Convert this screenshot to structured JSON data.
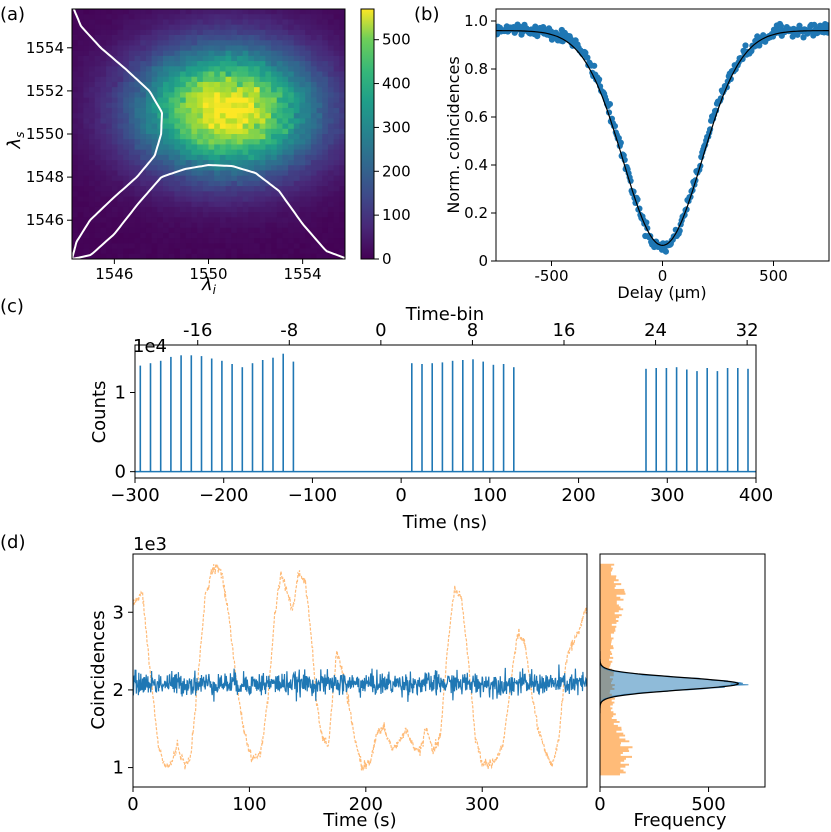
{
  "chart_data": [
    {
      "panel_label": "(a)",
      "type": "heatmap",
      "xlabel": "λ_i",
      "ylabel": "λ_s",
      "xlim": [
        1544.2,
        1555.8
      ],
      "ylim": [
        1544.2,
        1555.8
      ],
      "xticks": [
        1546,
        1550,
        1554
      ],
      "yticks": [
        1546,
        1548,
        1550,
        1552,
        1554
      ],
      "colormap": "viridis",
      "colorbar": {
        "min": 0,
        "max": 570,
        "ticks": [
          0,
          100,
          200,
          300,
          400,
          500
        ]
      },
      "peak": {
        "x": 1550.8,
        "y": 1551.1,
        "value": 570
      },
      "marginal_signal": {
        "y": [
          1544.2,
          1545,
          1546,
          1547,
          1548,
          1549,
          1550,
          1551,
          1552,
          1553,
          1554,
          1555,
          1555.8
        ],
        "rel": [
          0.0,
          0.05,
          0.2,
          0.45,
          0.72,
          0.92,
          0.99,
          1.0,
          0.86,
          0.6,
          0.32,
          0.1,
          0.02
        ]
      },
      "marginal_idler": {
        "x": [
          1544.2,
          1545,
          1546,
          1547,
          1548,
          1549,
          1550,
          1551,
          1552,
          1553,
          1554,
          1555,
          1555.8
        ],
        "rel": [
          0.0,
          0.04,
          0.25,
          0.55,
          0.82,
          0.9,
          0.94,
          0.93,
          0.86,
          0.68,
          0.35,
          0.08,
          0.01
        ]
      }
    },
    {
      "panel_label": "(b)",
      "type": "scatter",
      "xlabel": "Delay (μm)",
      "ylabel": "Norm. coincidences",
      "xlim": [
        -750,
        750
      ],
      "ylim": [
        0,
        1.05
      ],
      "xticks": [
        -500,
        0,
        500
      ],
      "yticks": [
        0.0,
        0.2,
        0.4,
        0.6,
        0.8,
        1.0
      ],
      "ytick_labels": [
        "0",
        "0.2",
        "0.4",
        "0.6",
        "0.8",
        "1.0"
      ],
      "dip": {
        "baseline": 0.965,
        "minimum": 0.055,
        "center": 0,
        "width_um": 170
      },
      "series": [
        {
          "kind": "points",
          "color": "#1f77b4"
        },
        {
          "kind": "fit",
          "color": "#000000"
        }
      ]
    },
    {
      "panel_label": "(c)",
      "type": "bar",
      "xlabel": "Time (ns)",
      "ylabel": "Counts",
      "top_xlabel": "Time-bin",
      "scale_label": "1e4",
      "xlim": [
        -300,
        400
      ],
      "ylim": [
        -0.08,
        1.6
      ],
      "xticks": [
        -300,
        -200,
        -100,
        0,
        100,
        200,
        300,
        400
      ],
      "xtick_labels": [
        "−300",
        "−200",
        "−100",
        "0",
        "100",
        "200",
        "300",
        "400"
      ],
      "top_xticks": [
        -16,
        -8,
        0,
        8,
        16,
        24,
        32
      ],
      "yticks": [
        0,
        1
      ],
      "color": "#1f77b4",
      "pulses": {
        "x": [
          -294,
          -282.5,
          -271,
          -259.5,
          -248,
          -236.5,
          -225,
          -213.5,
          -202,
          -190.5,
          -179,
          -167.5,
          -156,
          -144.5,
          -133,
          -121.5,
          12,
          23.5,
          35,
          46.5,
          58,
          69.5,
          81,
          92.5,
          104,
          115.5,
          127,
          276,
          287.5,
          299,
          310.5,
          322,
          333.5,
          345,
          356.5,
          368,
          379.5,
          391
        ],
        "values": [
          1.34,
          1.37,
          1.4,
          1.45,
          1.47,
          1.47,
          1.46,
          1.43,
          1.4,
          1.36,
          1.32,
          1.37,
          1.41,
          1.44,
          1.49,
          1.39,
          1.37,
          1.36,
          1.37,
          1.38,
          1.4,
          1.41,
          1.42,
          1.39,
          1.35,
          1.36,
          1.32,
          1.3,
          1.31,
          1.31,
          1.32,
          1.29,
          1.27,
          1.31,
          1.27,
          1.31,
          1.31,
          1.3
        ]
      }
    },
    {
      "panel_label": "(d)",
      "type": "line",
      "xlabel": "Time (s)",
      "ylabel": "Coincidences",
      "scale_label": "1e3",
      "xlim": [
        0,
        390
      ],
      "ylim": [
        0.75,
        3.75
      ],
      "xticks": [
        0,
        100,
        200,
        300
      ],
      "yticks": [
        1,
        2,
        3
      ],
      "series": [
        {
          "color": "#1f77b4",
          "mean": 2.08,
          "std": 0.075
        },
        {
          "color": "#ffbb78",
          "x": [
            0,
            8,
            15,
            22,
            28,
            33,
            38,
            45,
            50,
            55,
            62,
            68,
            72,
            76,
            82,
            88,
            95,
            102,
            110,
            116,
            122,
            127,
            132,
            137,
            142,
            148,
            153,
            158,
            163,
            168,
            175,
            182,
            190,
            197,
            204,
            210,
            216,
            222,
            228,
            234,
            240,
            246,
            252,
            258,
            264,
            270,
            276,
            282,
            288,
            294,
            300,
            306,
            312,
            318,
            324,
            330,
            336,
            342,
            348,
            354,
            360,
            366,
            372,
            378,
            384,
            389
          ],
          "y": [
            3.1,
            3.25,
            2.2,
            1.25,
            1.0,
            1.05,
            1.3,
            1.0,
            1.2,
            2.0,
            3.2,
            3.55,
            3.6,
            3.5,
            3.0,
            2.2,
            1.5,
            1.1,
            1.2,
            1.9,
            3.0,
            3.5,
            3.3,
            3.0,
            3.5,
            3.4,
            2.7,
            1.8,
            1.35,
            1.3,
            2.5,
            2.1,
            1.4,
            1.0,
            1.1,
            1.45,
            1.5,
            1.25,
            1.3,
            1.5,
            1.3,
            1.2,
            1.5,
            1.2,
            1.4,
            2.5,
            3.3,
            3.2,
            2.4,
            1.4,
            1.05,
            1.05,
            1.1,
            1.3,
            2.0,
            2.7,
            2.65,
            2.0,
            1.5,
            1.2,
            1.0,
            1.4,
            2.4,
            2.6,
            2.8,
            3.05
          ]
        }
      ]
    },
    {
      "panel_label": "",
      "type": "histogram",
      "xlabel": "Frequency",
      "xlim": [
        0,
        760
      ],
      "ylim": [
        0.75,
        3.75
      ],
      "xticks": [
        0,
        500
      ],
      "series": [
        {
          "color": "#ffbb78",
          "kind": "histogram"
        },
        {
          "color": "#1f77b4",
          "kind": "histogram",
          "peak": 650,
          "center": 2.08,
          "sigma": 0.075
        },
        {
          "color": "#000000",
          "kind": "fit"
        }
      ]
    }
  ]
}
